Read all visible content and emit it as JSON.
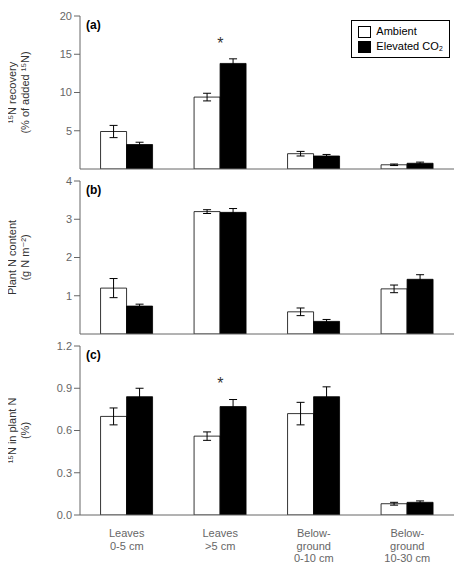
{
  "chart_data": [
    {
      "type": "bar",
      "title": "(a)",
      "y_label": "¹⁵N recovery\n(% of added ¹⁵N)",
      "categories": [
        null,
        null,
        null,
        null
      ],
      "series": [
        {
          "name": "Ambient",
          "color": "white",
          "values": [
            4.9,
            9.4,
            2.0,
            0.55
          ],
          "errors": [
            0.8,
            0.5,
            0.3,
            0.1
          ]
        },
        {
          "name": "Elevated CO₂",
          "color": "black",
          "values": [
            3.2,
            13.8,
            1.7,
            0.75
          ],
          "errors": [
            0.3,
            0.6,
            0.2,
            0.15
          ]
        }
      ],
      "ylim": [
        0,
        20
      ],
      "yticks": [
        0,
        5,
        10,
        15,
        20
      ],
      "annotations": [
        {
          "text": "*",
          "index": 1
        }
      ],
      "legend": "upper right"
    },
    {
      "type": "bar",
      "title": "(b)",
      "y_label": "Plant N content\n(g N m⁻²)",
      "categories": [
        null,
        null,
        null,
        null
      ],
      "series": [
        {
          "name": "Ambient",
          "color": "white",
          "values": [
            1.2,
            3.2,
            0.58,
            1.18
          ],
          "errors": [
            0.25,
            0.05,
            0.1,
            0.1
          ]
        },
        {
          "name": "Elevated CO₂",
          "color": "black",
          "values": [
            0.73,
            3.18,
            0.33,
            1.43
          ],
          "errors": [
            0.05,
            0.1,
            0.05,
            0.12
          ]
        }
      ],
      "ylim": [
        0,
        4
      ],
      "yticks": [
        0,
        1,
        2,
        3,
        4
      ],
      "annotations": []
    },
    {
      "type": "bar",
      "title": "(c)",
      "y_label": "¹⁵N in plant N\n(%)",
      "categories": [
        "Leaves\n0-5 cm",
        "Leaves\n>5 cm",
        "Below-\nground\n0-10 cm",
        "Below-\nground\n10-30 cm"
      ],
      "series": [
        {
          "name": "Ambient",
          "color": "white",
          "values": [
            0.7,
            0.56,
            0.72,
            0.08
          ],
          "errors": [
            0.06,
            0.03,
            0.08,
            0.01
          ]
        },
        {
          "name": "Elevated CO₂",
          "color": "black",
          "values": [
            0.84,
            0.77,
            0.84,
            0.09
          ],
          "errors": [
            0.06,
            0.05,
            0.07,
            0.01
          ]
        }
      ],
      "ylim": [
        0,
        1.2
      ],
      "yticks": [
        {
          "value": 0,
          "label": "0.0"
        },
        0.3,
        0.6,
        0.9,
        1.2
      ],
      "annotations": [
        {
          "text": "*",
          "index": 1
        }
      ]
    }
  ]
}
